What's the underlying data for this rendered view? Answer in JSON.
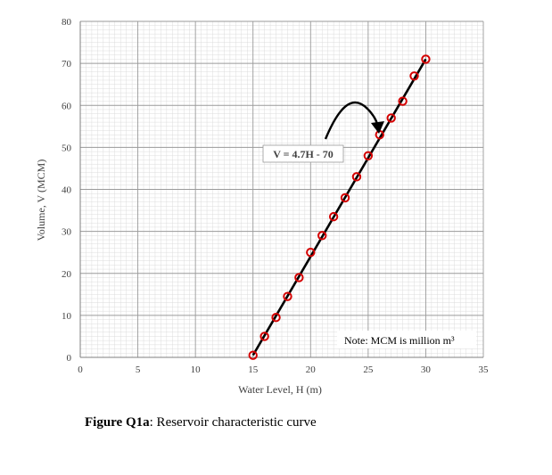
{
  "chart_data": {
    "type": "line",
    "xlabel": "Water Level, H (m)",
    "ylabel": "Volume, V (MCM)",
    "xlim": [
      0,
      35
    ],
    "ylim": [
      0,
      80
    ],
    "x_ticks": [
      "0",
      "5",
      "10",
      "15",
      "20",
      "25",
      "30",
      "35"
    ],
    "y_ticks": [
      "0",
      "10",
      "20",
      "30",
      "40",
      "50",
      "60",
      "70",
      "80"
    ],
    "grid": true,
    "fit_line": {
      "equation": "V = 4.7H - 70",
      "slope": 4.7,
      "intercept": -70,
      "x_range": [
        15,
        30
      ]
    },
    "points": {
      "x": [
        15,
        16,
        17,
        18,
        19,
        20,
        21,
        22,
        23,
        24,
        25,
        26,
        27,
        28,
        29,
        30
      ],
      "y": [
        0.5,
        5,
        9.5,
        14.5,
        19,
        25,
        29,
        33.5,
        38,
        43,
        48,
        53,
        57,
        61,
        67,
        71
      ]
    },
    "marker_color": "#d40000",
    "line_color": "#000000",
    "note": "Note: MCM is million m³"
  },
  "caption": {
    "label": "Figure Q1a",
    "text": ": Reservoir characteristic curve"
  }
}
